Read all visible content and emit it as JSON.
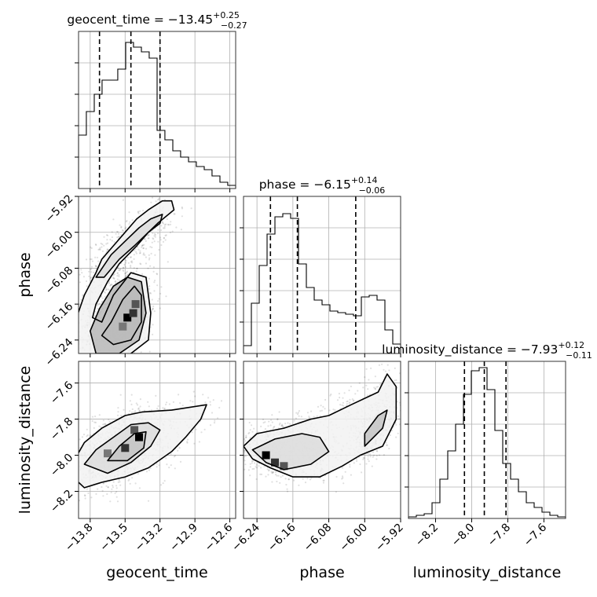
{
  "chart_data": {
    "type": "corner",
    "parameters": [
      {
        "name": "geocent_time",
        "axis_label": "geocent_time",
        "title": {
          "prefix": "geocent_time = ",
          "median": "−13.45",
          "upper": "+0.25",
          "lower": "−0.27"
        },
        "range": [
          -13.9,
          -12.55
        ],
        "ticks": [
          -13.8,
          -13.5,
          -13.2,
          -12.9,
          -12.6
        ],
        "tick_labels": [
          "−13.8",
          "−13.5",
          "−13.2",
          "−12.9",
          "−12.6"
        ],
        "quantiles": [
          -13.72,
          -13.45,
          -13.2
        ],
        "hist_edges": [
          -13.9,
          -13.833,
          -13.765,
          -13.698,
          -13.63,
          -13.563,
          -13.495,
          -13.428,
          -13.36,
          -13.293,
          -13.225,
          -13.158,
          -13.09,
          -13.023,
          -12.955,
          -12.888,
          -12.82,
          -12.753,
          -12.685,
          -12.618,
          -12.55
        ],
        "hist_values": [
          0.34,
          0.49,
          0.6,
          0.69,
          0.69,
          0.76,
          0.93,
          0.9,
          0.87,
          0.83,
          0.37,
          0.31,
          0.24,
          0.2,
          0.17,
          0.14,
          0.12,
          0.08,
          0.04,
          0.02
        ]
      },
      {
        "name": "phase",
        "axis_label": "phase",
        "title": {
          "prefix": "phase = ",
          "median": "−6.15",
          "upper": "+0.14",
          "lower": "−0.06"
        },
        "range": [
          -6.27,
          -5.92
        ],
        "ticks": [
          -6.24,
          -6.16,
          -6.08,
          -6.0,
          -5.92
        ],
        "tick_labels": [
          "−6.24",
          "−6.16",
          "−6.08",
          "−6.00",
          "−5.92"
        ],
        "quantiles": [
          -6.21,
          -6.15,
          -6.02
        ],
        "hist_edges": [
          -6.27,
          -6.2525,
          -6.235,
          -6.2175,
          -6.2,
          -6.1825,
          -6.165,
          -6.1475,
          -6.13,
          -6.1125,
          -6.095,
          -6.0775,
          -6.06,
          -6.0425,
          -6.025,
          -6.0075,
          -5.99,
          -5.9725,
          -5.955,
          -5.9375,
          -5.92
        ],
        "hist_values": [
          0.05,
          0.32,
          0.56,
          0.76,
          0.87,
          0.89,
          0.86,
          0.57,
          0.42,
          0.34,
          0.31,
          0.27,
          0.26,
          0.25,
          0.24,
          0.36,
          0.37,
          0.34,
          0.15,
          0.06
        ]
      },
      {
        "name": "luminosity_distance",
        "axis_label": "luminosity_distance",
        "title": {
          "prefix": "luminosity_distance = ",
          "median": "−7.93",
          "upper": "+0.12",
          "lower": "−0.11"
        },
        "range": [
          -8.35,
          -7.48
        ],
        "ticks": [
          -8.2,
          -8.0,
          -7.8,
          -7.6
        ],
        "tick_labels": [
          "−8.2",
          "−8.0",
          "−7.8",
          "−7.6"
        ],
        "quantiles": [
          -8.04,
          -7.93,
          -7.81
        ],
        "hist_edges": [
          -8.35,
          -8.3065,
          -8.263,
          -8.2195,
          -8.176,
          -8.1325,
          -8.089,
          -8.0455,
          -8.002,
          -7.9585,
          -7.915,
          -7.8715,
          -7.828,
          -7.7845,
          -7.741,
          -7.6975,
          -7.654,
          -7.6105,
          -7.567,
          -7.5235,
          -7.48
        ],
        "hist_values": [
          0.01,
          0.02,
          0.03,
          0.1,
          0.25,
          0.43,
          0.6,
          0.79,
          0.94,
          0.96,
          0.82,
          0.56,
          0.35,
          0.25,
          0.17,
          0.1,
          0.07,
          0.04,
          0.02,
          0.01
        ]
      }
    ],
    "pairs": [
      {
        "x": "geocent_time",
        "y": "phase",
        "contour_levels": 3,
        "contours": [
          [
            [
              -13.98,
              -6.25
            ],
            [
              -13.93,
              -6.2
            ],
            [
              -13.85,
              -6.14
            ],
            [
              -13.75,
              -6.09
            ],
            [
              -13.7,
              -6.06
            ],
            [
              -13.6,
              -6.03
            ],
            [
              -13.5,
              -6.0
            ],
            [
              -13.4,
              -5.97
            ],
            [
              -13.3,
              -5.95
            ],
            [
              -13.18,
              -5.93
            ],
            [
              -13.1,
              -5.93
            ],
            [
              -13.08,
              -5.95
            ],
            [
              -13.22,
              -5.98
            ],
            [
              -13.3,
              -6.0
            ],
            [
              -13.4,
              -6.03
            ],
            [
              -13.55,
              -6.07
            ],
            [
              -13.65,
              -6.11
            ],
            [
              -13.75,
              -6.16
            ],
            [
              -13.78,
              -6.19
            ],
            [
              -13.7,
              -6.2
            ],
            [
              -13.6,
              -6.14
            ],
            [
              -13.45,
              -6.09
            ],
            [
              -13.32,
              -6.1
            ],
            [
              -13.28,
              -6.18
            ],
            [
              -13.3,
              -6.24
            ],
            [
              -13.5,
              -6.28
            ],
            [
              -13.7,
              -6.29
            ],
            [
              -13.9,
              -6.28
            ],
            [
              -13.98,
              -6.25
            ]
          ],
          [
            [
              -13.75,
              -6.1
            ],
            [
              -13.62,
              -6.05
            ],
            [
              -13.5,
              -6.02
            ],
            [
              -13.38,
              -5.99
            ],
            [
              -13.28,
              -5.97
            ],
            [
              -13.18,
              -5.96
            ],
            [
              -13.2,
              -5.98
            ],
            [
              -13.3,
              -6.0
            ],
            [
              -13.42,
              -6.03
            ],
            [
              -13.55,
              -6.06
            ],
            [
              -13.68,
              -6.1
            ],
            [
              -13.75,
              -6.1
            ]
          ],
          [
            [
              -13.7,
              -6.23
            ],
            [
              -13.62,
              -6.2
            ],
            [
              -13.52,
              -6.15
            ],
            [
              -13.42,
              -6.12
            ],
            [
              -13.36,
              -6.14
            ],
            [
              -13.36,
              -6.2
            ],
            [
              -13.45,
              -6.24
            ],
            [
              -13.6,
              -6.25
            ],
            [
              -13.7,
              -6.23
            ]
          ],
          [
            [
              -13.8,
              -6.22
            ],
            [
              -13.72,
              -6.17
            ],
            [
              -13.6,
              -6.12
            ],
            [
              -13.48,
              -6.1
            ],
            [
              -13.36,
              -6.11
            ],
            [
              -13.32,
              -6.18
            ],
            [
              -13.38,
              -6.24
            ],
            [
              -13.55,
              -6.27
            ],
            [
              -13.75,
              -6.27
            ],
            [
              -13.8,
              -6.22
            ]
          ]
        ],
        "density_peaks": [
          [
            -13.48,
            -6.19
          ],
          [
            -13.43,
            -6.18
          ],
          [
            -13.41,
            -6.16
          ],
          [
            -13.52,
            -6.21
          ]
        ]
      },
      {
        "x": "geocent_time",
        "y": "luminosity_distance",
        "contour_levels": 3,
        "contours": [
          [
            [
              -13.95,
              -8.12
            ],
            [
              -13.93,
              -8.02
            ],
            [
              -13.85,
              -7.93
            ],
            [
              -13.7,
              -7.85
            ],
            [
              -13.5,
              -7.78
            ],
            [
              -13.35,
              -7.76
            ],
            [
              -13.1,
              -7.75
            ],
            [
              -12.8,
              -7.72
            ],
            [
              -12.85,
              -7.8
            ],
            [
              -12.98,
              -7.9
            ],
            [
              -13.1,
              -7.98
            ],
            [
              -13.3,
              -8.07
            ],
            [
              -13.5,
              -8.12
            ],
            [
              -13.7,
              -8.15
            ],
            [
              -13.85,
              -8.18
            ],
            [
              -13.95,
              -8.12
            ]
          ],
          [
            [
              -13.85,
              -8.05
            ],
            [
              -13.75,
              -7.97
            ],
            [
              -13.6,
              -7.9
            ],
            [
              -13.45,
              -7.83
            ],
            [
              -13.3,
              -7.82
            ],
            [
              -13.2,
              -7.86
            ],
            [
              -13.28,
              -7.95
            ],
            [
              -13.45,
              -8.04
            ],
            [
              -13.65,
              -8.1
            ],
            [
              -13.85,
              -8.05
            ]
          ],
          [
            [
              -13.65,
              -8.03
            ],
            [
              -13.55,
              -7.95
            ],
            [
              -13.42,
              -7.88
            ],
            [
              -13.32,
              -7.87
            ],
            [
              -13.34,
              -7.96
            ],
            [
              -13.48,
              -8.03
            ],
            [
              -13.65,
              -8.03
            ]
          ]
        ],
        "density_peaks": [
          [
            -13.38,
            -7.9
          ],
          [
            -13.5,
            -7.96
          ],
          [
            -13.42,
            -7.86
          ],
          [
            -13.65,
            -7.99
          ]
        ]
      },
      {
        "x": "phase",
        "y": "luminosity_distance",
        "contour_levels": 3,
        "contours": [
          [
            [
              -6.27,
              -7.95
            ],
            [
              -6.24,
              -7.88
            ],
            [
              -6.18,
              -7.85
            ],
            [
              -6.12,
              -7.8
            ],
            [
              -6.08,
              -7.78
            ],
            [
              -6.03,
              -7.72
            ],
            [
              -5.97,
              -7.65
            ],
            [
              -5.95,
              -7.55
            ],
            [
              -5.93,
              -7.62
            ],
            [
              -5.93,
              -7.8
            ],
            [
              -5.96,
              -7.95
            ],
            [
              -6.01,
              -8.0
            ],
            [
              -6.05,
              -8.06
            ],
            [
              -6.1,
              -8.12
            ],
            [
              -6.16,
              -8.12
            ],
            [
              -6.21,
              -8.07
            ],
            [
              -6.25,
              -8.02
            ],
            [
              -6.27,
              -7.95
            ]
          ],
          [
            [
              -6.25,
              -7.97
            ],
            [
              -6.2,
              -7.91
            ],
            [
              -6.14,
              -7.88
            ],
            [
              -6.1,
              -7.9
            ],
            [
              -6.08,
              -7.98
            ],
            [
              -6.12,
              -8.05
            ],
            [
              -6.18,
              -8.08
            ],
            [
              -6.22,
              -8.04
            ],
            [
              -6.25,
              -7.97
            ]
          ],
          [
            [
              -6.0,
              -7.95
            ],
            [
              -5.96,
              -7.85
            ],
            [
              -5.95,
              -7.75
            ],
            [
              -5.97,
              -7.78
            ],
            [
              -6.0,
              -7.88
            ],
            [
              -6.0,
              -7.95
            ]
          ]
        ],
        "density_peaks": [
          [
            -6.22,
            -8.0
          ],
          [
            -6.2,
            -8.04
          ],
          [
            -6.18,
            -8.06
          ]
        ]
      }
    ]
  }
}
